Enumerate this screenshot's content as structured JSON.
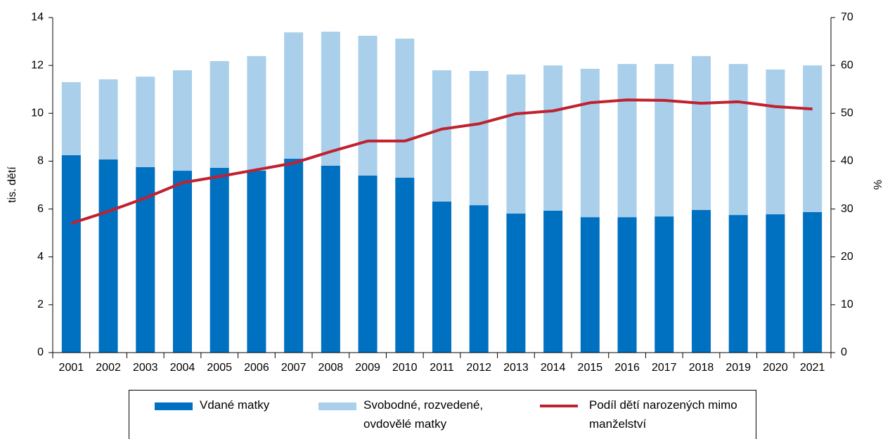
{
  "chart_data": {
    "type": "bar",
    "stacked": true,
    "categories": [
      "2001",
      "2002",
      "2003",
      "2004",
      "2005",
      "2006",
      "2007",
      "2008",
      "2009",
      "2010",
      "2011",
      "2012",
      "2013",
      "2014",
      "2015",
      "2016",
      "2017",
      "2018",
      "2019",
      "2020",
      "2021"
    ],
    "series": [
      {
        "name": "Vdané matky",
        "color": "#0070c0",
        "values": [
          8.25,
          8.07,
          7.75,
          7.6,
          7.72,
          7.6,
          8.1,
          7.81,
          7.4,
          7.31,
          6.31,
          6.16,
          5.81,
          5.93,
          5.66,
          5.66,
          5.69,
          5.96,
          5.75,
          5.78,
          5.87
        ]
      },
      {
        "name": "Svobodné, rozvedené, ovdovělé matky",
        "color": "#a9cfea",
        "values": [
          3.05,
          3.35,
          3.78,
          4.2,
          4.46,
          4.79,
          5.28,
          5.6,
          5.84,
          5.81,
          5.49,
          5.61,
          5.81,
          6.07,
          6.2,
          6.4,
          6.37,
          6.43,
          6.31,
          6.05,
          6.13
        ]
      },
      {
        "name": "Podíl dětí narozených mimo manželství",
        "color": "#c0212f",
        "type": "line",
        "axis": "y2",
        "values": [
          27.0,
          29.5,
          32.3,
          35.5,
          36.8,
          38.2,
          39.6,
          42.0,
          44.2,
          44.2,
          46.7,
          47.8,
          49.9,
          50.5,
          52.2,
          52.8,
          52.7,
          52.1,
          52.4,
          51.4,
          50.9
        ]
      }
    ],
    "ylabel": "tis. dětí",
    "y2label": "%",
    "ylim": [
      0,
      14
    ],
    "yticks": [
      0,
      2,
      4,
      6,
      8,
      10,
      12,
      14
    ],
    "y2lim": [
      0,
      70
    ],
    "y2ticks": [
      0,
      10,
      20,
      30,
      40,
      50,
      60,
      70
    ]
  }
}
